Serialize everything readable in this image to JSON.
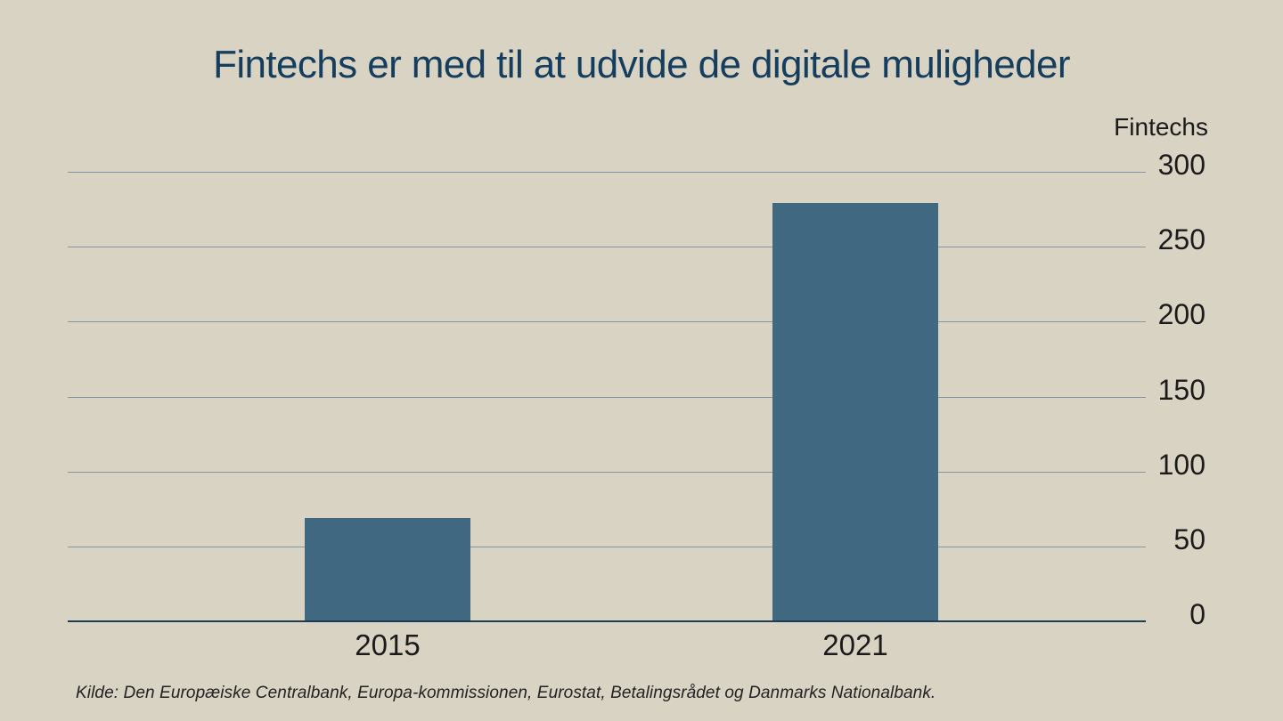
{
  "chart_data": {
    "type": "bar",
    "title": "Fintechs er med til at udvide de digitale muligheder",
    "ylabel": "Fintechs",
    "categories": [
      "2015",
      "2021"
    ],
    "values": [
      69,
      279
    ],
    "yticks": [
      0,
      50,
      100,
      150,
      200,
      250,
      300
    ],
    "ylim": [
      0,
      300
    ],
    "grid": true,
    "legend_position": "none",
    "source": "Kilde: Den Europæiske Centralbank, Europa-kommissionen, Eurostat, Betalingsrådet og Danmarks Nationalbank."
  },
  "colors": {
    "background": "#d9d3c4",
    "bar": "#406880",
    "title": "#153d5e",
    "gridline": "#8397a5",
    "baseline": "#1d3c55",
    "text": "#1b1b1b"
  }
}
